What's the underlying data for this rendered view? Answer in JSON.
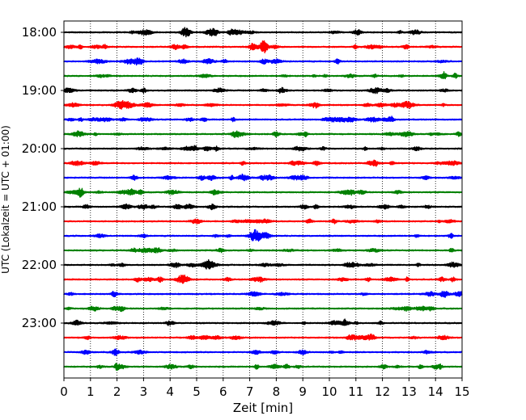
{
  "chart_data": {
    "type": "line",
    "title": "",
    "xlabel": "Zeit  [min]",
    "ylabel": "UTC (Lokalzeit = UTC + 01:00)",
    "xlim": [
      0,
      15
    ],
    "x_ticks": [
      0,
      1,
      2,
      3,
      4,
      5,
      6,
      7,
      8,
      9,
      10,
      11,
      12,
      13,
      14,
      15
    ],
    "x_tick_labels": [
      "0",
      "1",
      "2",
      "3",
      "4",
      "5",
      "6",
      "7",
      "8",
      "9",
      "10",
      "11",
      "12",
      "13",
      "14",
      "15"
    ],
    "y_tick_labels": [
      "18:00",
      "19:00",
      "20:00",
      "21:00",
      "22:00",
      "23:00"
    ],
    "grid": "vertical dotted",
    "legend": "none",
    "trace_colors": [
      "#000000",
      "#ff0000",
      "#0000ff",
      "#008000"
    ],
    "traces": [
      {
        "start": "18:00",
        "color": "#000000"
      },
      {
        "start": "18:15",
        "color": "#ff0000"
      },
      {
        "start": "18:30",
        "color": "#0000ff"
      },
      {
        "start": "18:45",
        "color": "#008000"
      },
      {
        "start": "19:00",
        "color": "#000000"
      },
      {
        "start": "19:15",
        "color": "#ff0000"
      },
      {
        "start": "19:30",
        "color": "#0000ff"
      },
      {
        "start": "19:45",
        "color": "#008000"
      },
      {
        "start": "20:00",
        "color": "#000000"
      },
      {
        "start": "20:15",
        "color": "#ff0000"
      },
      {
        "start": "20:30",
        "color": "#0000ff"
      },
      {
        "start": "20:45",
        "color": "#008000"
      },
      {
        "start": "21:00",
        "color": "#000000"
      },
      {
        "start": "21:15",
        "color": "#ff0000"
      },
      {
        "start": "21:30",
        "color": "#0000ff"
      },
      {
        "start": "21:45",
        "color": "#008000"
      },
      {
        "start": "22:00",
        "color": "#000000"
      },
      {
        "start": "22:15",
        "color": "#ff0000"
      },
      {
        "start": "22:30",
        "color": "#0000ff"
      },
      {
        "start": "22:45",
        "color": "#008000"
      },
      {
        "start": "23:00",
        "color": "#000000"
      },
      {
        "start": "23:15",
        "color": "#ff0000"
      },
      {
        "start": "23:30",
        "color": "#0000ff"
      },
      {
        "start": "23:45",
        "color": "#008000"
      }
    ]
  }
}
